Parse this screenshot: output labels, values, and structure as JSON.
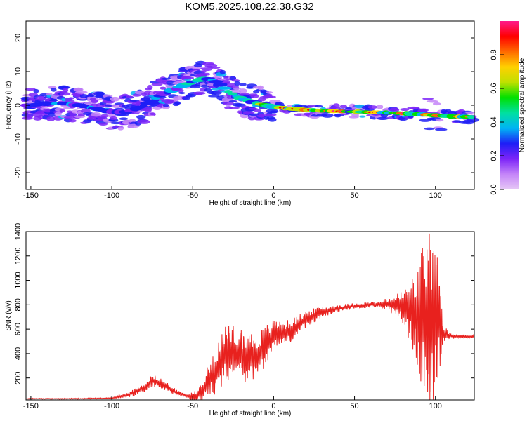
{
  "title": "KOM5.2025.108.22.38.G32",
  "chart_data": [
    {
      "type": "heatmap",
      "xlabel": "Height of straight line (km)",
      "ylabel": "Frequency (Hz)",
      "xlim": [
        -153,
        124
      ],
      "ylim": [
        -25,
        25
      ],
      "xticks": [
        -150,
        -100,
        -50,
        0,
        50,
        100
      ],
      "yticks": [
        -20,
        -10,
        0,
        10,
        20
      ],
      "colorbar": {
        "label": "Normalized spectral amplitude",
        "range": [
          0,
          1
        ],
        "ticks": [
          0.0,
          0.2,
          0.4,
          0.6,
          0.8
        ],
        "colors": [
          "#e6c8f6",
          "#c484f8",
          "#7c24f8",
          "#1e1ef6",
          "#00b4f4",
          "#00e0a0",
          "#00e000",
          "#c0e000",
          "#ffd000",
          "#ff6a00",
          "#ff0000",
          "#ff1a8c"
        ]
      },
      "ridge": [
        [
          -150,
          0
        ],
        [
          -140,
          0.5
        ],
        [
          -130,
          0.5
        ],
        [
          -120,
          0
        ],
        [
          -110,
          -1
        ],
        [
          -100,
          -2
        ],
        [
          -90,
          -2
        ],
        [
          -80,
          0
        ],
        [
          -70,
          3
        ],
        [
          -60,
          5
        ],
        [
          -50,
          7
        ],
        [
          -42,
          8
        ],
        [
          -35,
          7
        ],
        [
          -28,
          4
        ],
        [
          -20,
          2
        ],
        [
          -10,
          0.5
        ],
        [
          0,
          -0.5
        ],
        [
          10,
          -1
        ],
        [
          25,
          -1.5
        ],
        [
          40,
          -1.8
        ],
        [
          55,
          -2
        ],
        [
          70,
          -2.2
        ],
        [
          85,
          -2.5
        ],
        [
          100,
          -3
        ],
        [
          110,
          -3.3
        ],
        [
          124,
          -3.5
        ]
      ],
      "grid": false
    },
    {
      "type": "line",
      "xlabel": "Height of straight line (km)",
      "ylabel": "SNR (v/v)",
      "xlim": [
        -153,
        124
      ],
      "ylim": [
        20,
        1400
      ],
      "xticks": [
        -150,
        -100,
        -50,
        0,
        50,
        100
      ],
      "yticks": [
        200,
        400,
        600,
        800,
        1000,
        1200,
        1400
      ],
      "color": "#e8211e",
      "trend": [
        [
          -153,
          30
        ],
        [
          -120,
          30
        ],
        [
          -100,
          35
        ],
        [
          -90,
          60
        ],
        [
          -80,
          120
        ],
        [
          -75,
          180
        ],
        [
          -70,
          160
        ],
        [
          -60,
          80
        ],
        [
          -50,
          40
        ],
        [
          -45,
          80
        ],
        [
          -40,
          180
        ],
        [
          -30,
          380
        ],
        [
          -20,
          380
        ],
        [
          -10,
          380
        ],
        [
          0,
          550
        ],
        [
          10,
          580
        ],
        [
          20,
          680
        ],
        [
          30,
          740
        ],
        [
          40,
          770
        ],
        [
          50,
          790
        ],
        [
          60,
          800
        ],
        [
          70,
          805
        ],
        [
          80,
          780
        ],
        [
          90,
          700
        ],
        [
          95,
          700
        ],
        [
          100,
          700
        ],
        [
          105,
          560
        ],
        [
          110,
          540
        ],
        [
          124,
          540
        ]
      ],
      "noise": [
        [
          -153,
          3
        ],
        [
          -100,
          4
        ],
        [
          -85,
          25
        ],
        [
          -75,
          40
        ],
        [
          -65,
          30
        ],
        [
          -55,
          10
        ],
        [
          -45,
          60
        ],
        [
          -35,
          180
        ],
        [
          -25,
          220
        ],
        [
          -15,
          170
        ],
        [
          -5,
          140
        ],
        [
          5,
          90
        ],
        [
          15,
          70
        ],
        [
          25,
          50
        ],
        [
          35,
          30
        ],
        [
          50,
          20
        ],
        [
          65,
          20
        ],
        [
          72,
          50
        ],
        [
          80,
          120
        ],
        [
          88,
          300
        ],
        [
          95,
          650
        ],
        [
          100,
          550
        ],
        [
          105,
          60
        ],
        [
          110,
          15
        ],
        [
          124,
          12
        ]
      ],
      "grid": false
    }
  ]
}
